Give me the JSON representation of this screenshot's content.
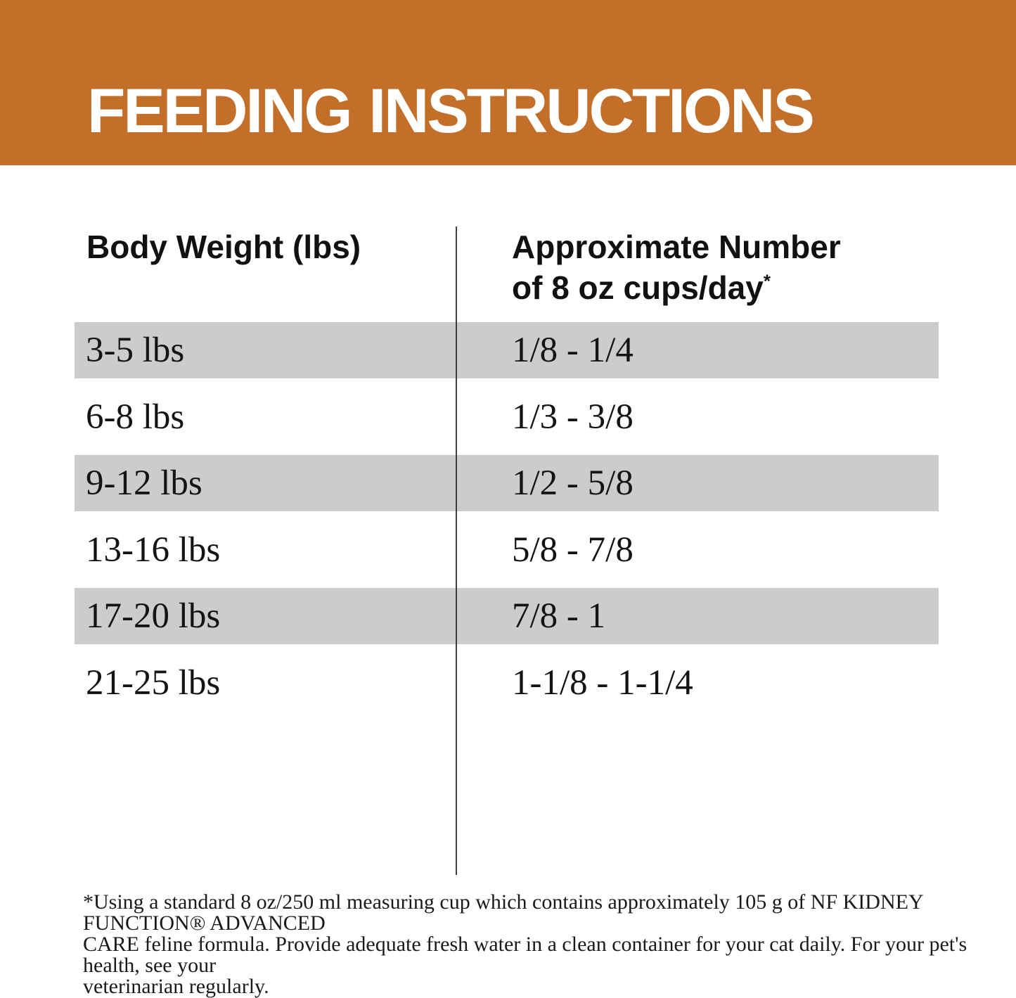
{
  "banner": {
    "title": "FEEDING INSTRUCTIONS",
    "bg_color": "#C36F2A"
  },
  "table": {
    "col1_header": "Body Weight (lbs)",
    "col2_header_line1": "Approximate Number",
    "col2_header_line2": "of 8 oz cups/day",
    "col2_header_sup": "*",
    "stripe_color": "#CCCCCC",
    "rows": [
      {
        "weight": "3-5 lbs",
        "cups": "1/8 - 1/4"
      },
      {
        "weight": "6-8 lbs",
        "cups": "1/3 - 3/8"
      },
      {
        "weight": "9-12 lbs",
        "cups": "1/2 - 5/8"
      },
      {
        "weight": "13-16 lbs",
        "cups": "5/8 - 7/8"
      },
      {
        "weight": "17-20 lbs",
        "cups": "7/8 - 1"
      },
      {
        "weight": "21-25 lbs",
        "cups": "1-1/8 - 1-1/4"
      }
    ]
  },
  "footnote": {
    "lines": [
      "*Using a standard 8 oz/250 ml measuring cup which contains approximately 105 g of NF KIDNEY FUNCTION® ADVANCED",
      "CARE feline formula. Provide adequate fresh water in a clean container for your cat daily. For your pet's health, see your",
      "veterinarian regularly."
    ]
  }
}
